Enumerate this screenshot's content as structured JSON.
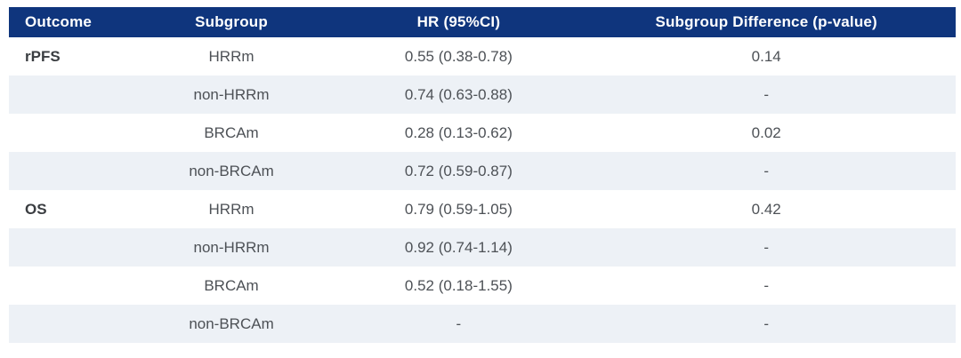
{
  "chart_data": {
    "type": "table",
    "columns": [
      "Outcome",
      "Subgroup",
      "HR (95%CI)",
      "Subgroup Difference (p-value)"
    ],
    "column_keys": [
      "outcome",
      "subgroup",
      "hr-95ci",
      "p-value"
    ],
    "rows": [
      [
        "rPFS",
        "HRRm",
        "0.55 (0.38-0.78)",
        "0.14"
      ],
      [
        "",
        "non-HRRm",
        "0.74 (0.63-0.88)",
        "-"
      ],
      [
        "",
        "BRCAm",
        "0.28 (0.13-0.62)",
        "0.02"
      ],
      [
        "",
        "non-BRCAm",
        "0.72 (0.59-0.87)",
        "-"
      ],
      [
        "OS",
        "HRRm",
        "0.79 (0.59-1.05)",
        "0.42"
      ],
      [
        "",
        "non-HRRm",
        "0.92 (0.74-1.14)",
        "-"
      ],
      [
        "",
        "BRCAm",
        "0.52 (0.18-1.55)",
        "-"
      ],
      [
        "",
        "non-BRCAm",
        "-",
        "-"
      ]
    ],
    "layout": {
      "striped": true,
      "stripe_rows": "even"
    },
    "colors": {
      "header_bg": "#0f357d",
      "header_text": "#ffffff",
      "stripe_bg": "#edf1f6",
      "body_text": "#4d5156",
      "outcome_text": "#3a3d41",
      "page_bg": "#ffffff"
    }
  }
}
